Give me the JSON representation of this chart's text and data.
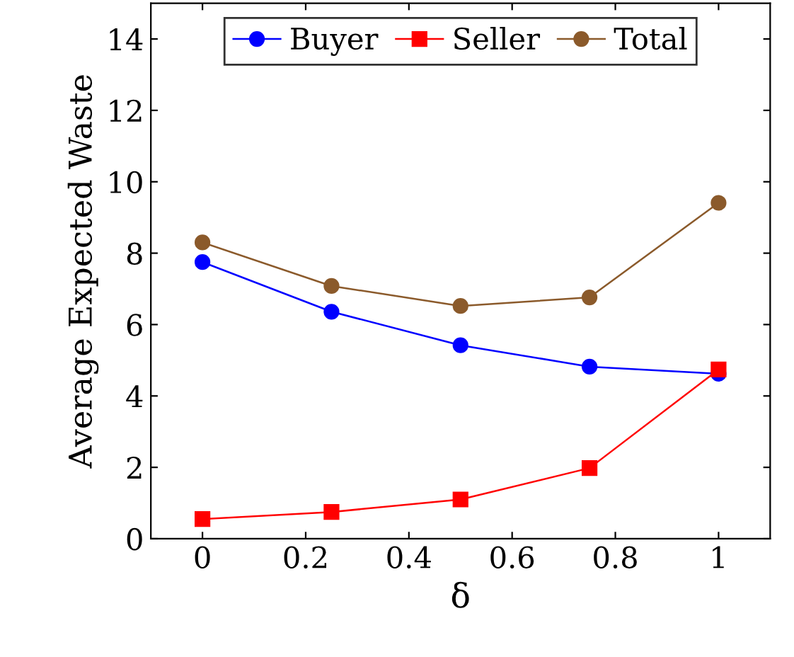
{
  "chart_data": {
    "type": "line",
    "xlabel": "δ",
    "ylabel": "Average Expected Waste",
    "x": [
      0,
      0.25,
      0.5,
      0.75,
      1
    ],
    "series": [
      {
        "name": "Buyer",
        "color": "#0000ff",
        "marker": "circle",
        "values": [
          7.75,
          6.36,
          5.42,
          4.82,
          4.62
        ]
      },
      {
        "name": "Seller",
        "color": "#ff0000",
        "marker": "square",
        "values": [
          0.55,
          0.75,
          1.1,
          1.98,
          4.74
        ]
      },
      {
        "name": "Total",
        "color": "#8b5a2b",
        "marker": "circle",
        "values": [
          8.3,
          7.08,
          6.52,
          6.76,
          9.41
        ]
      }
    ],
    "xlim": [
      -0.1,
      1.1
    ],
    "xticks": [
      0,
      0.2,
      0.4,
      0.6,
      0.8,
      1
    ],
    "ylim": [
      0,
      15
    ],
    "yticks": [
      0,
      2,
      4,
      6,
      8,
      10,
      12,
      14
    ],
    "legend": "top",
    "grid": false
  }
}
